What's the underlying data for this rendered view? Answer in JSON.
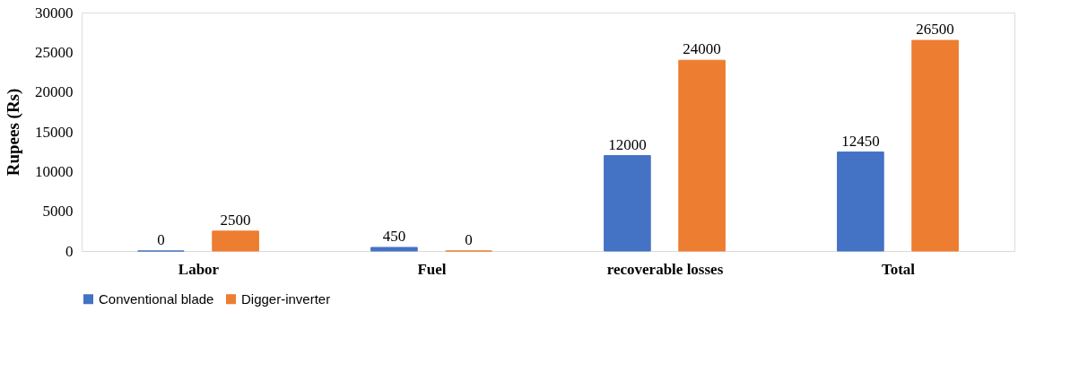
{
  "chart_data": {
    "type": "bar",
    "ylabel": "Rupees (Rs)",
    "categories": [
      "Labor",
      "Fuel",
      "recoverable losses",
      "Total"
    ],
    "series": [
      {
        "name": "Conventional blade",
        "color": "#4472c4",
        "values": [
          0,
          450,
          12000,
          12450
        ]
      },
      {
        "name": "Digger-inverter",
        "color": "#ed7d31",
        "values": [
          2500,
          0,
          24000,
          26500
        ]
      }
    ],
    "ylim": [
      0,
      30000
    ],
    "yticks": [
      0,
      5000,
      10000,
      15000,
      20000,
      25000,
      30000
    ],
    "data_labels": true,
    "legend": "bottom",
    "grid": false
  }
}
